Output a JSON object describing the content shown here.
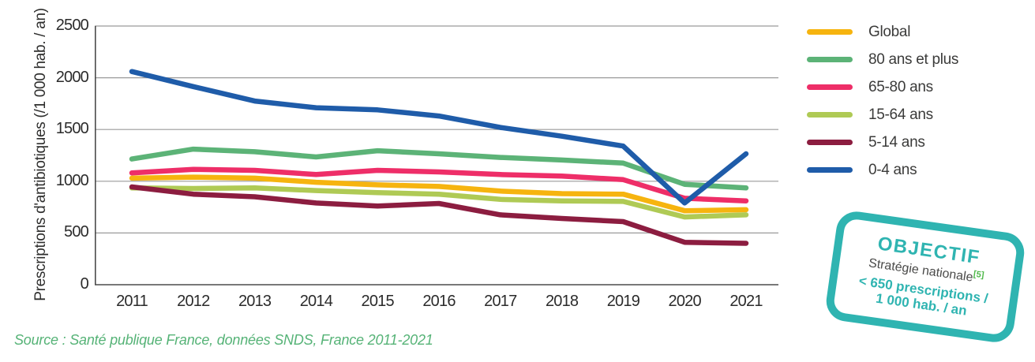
{
  "chart_data": {
    "type": "line",
    "title": "",
    "xlabel": "",
    "ylabel": "Prescriptions d'antibiotiques (/1 000 hab. / an)",
    "categories": [
      "2011",
      "2012",
      "2013",
      "2014",
      "2015",
      "2016",
      "2017",
      "2018",
      "2019",
      "2020",
      "2021"
    ],
    "ylim": [
      0,
      2500
    ],
    "yticks": [
      "0",
      "500",
      "1000",
      "1500",
      "2000",
      "2500"
    ],
    "grid": "horizontal",
    "legend_position": "right",
    "series": [
      {
        "name": "Global",
        "color": "#f6b40f",
        "values": [
          1030,
          1040,
          1030,
          990,
          965,
          950,
          905,
          880,
          875,
          715,
          725
        ]
      },
      {
        "name": "80 ans et plus",
        "color": "#5cb377",
        "values": [
          1215,
          1310,
          1285,
          1235,
          1295,
          1265,
          1230,
          1205,
          1175,
          970,
          935
        ]
      },
      {
        "name": "65-80 ans",
        "color": "#ee2e68",
        "values": [
          1080,
          1115,
          1105,
          1065,
          1105,
          1090,
          1065,
          1050,
          1015,
          835,
          810
        ]
      },
      {
        "name": "15-64 ans",
        "color": "#afca55",
        "values": [
          935,
          930,
          935,
          910,
          890,
          875,
          825,
          810,
          805,
          655,
          675
        ]
      },
      {
        "name": "5-14 ans",
        "color": "#8c1d40",
        "values": [
          945,
          875,
          850,
          790,
          760,
          785,
          675,
          640,
          610,
          410,
          400
        ]
      },
      {
        "name": "0-4 ans",
        "color": "#1f5ca9",
        "values": [
          2060,
          1915,
          1775,
          1710,
          1690,
          1630,
          1520,
          1435,
          1340,
          790,
          1265
        ]
      }
    ],
    "axis_color": "#4b4b4b",
    "gridline_color": "#9a9a9a"
  },
  "source": "Source : Santé publique France, données SNDS, France 2011-2021",
  "objective_badge": {
    "title": "OBJECTIF",
    "subtitle": "Stratégie nationale",
    "reference": "[5]",
    "target_line1": "< 650 prescriptions /",
    "target_line2": "1 000 hab. / an",
    "color": "#2fb4b1",
    "reference_color": "#4db848"
  }
}
